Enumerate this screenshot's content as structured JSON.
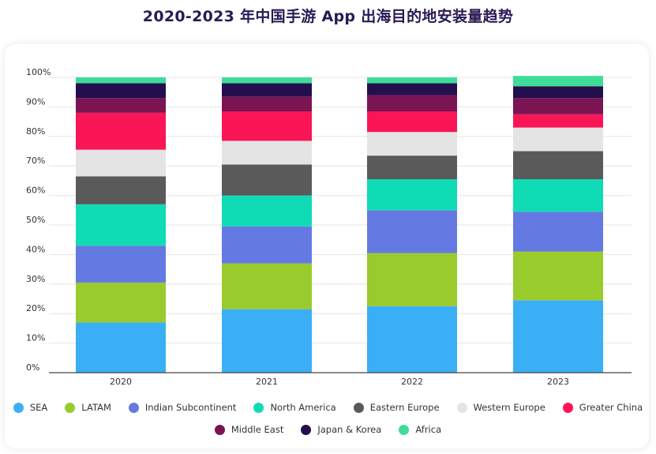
{
  "title": "2020-2023 年中国手游 App 出海目的地安装量趋势",
  "chart_data": {
    "type": "bar",
    "stacked": true,
    "title": "2020-2023 年中国手游 App 出海目的地安装量趋势",
    "xlabel": "",
    "ylabel": "",
    "ylim": [
      0,
      100
    ],
    "yticks": [
      "0%",
      "10%",
      "20%",
      "30%",
      "40%",
      "50%",
      "60%",
      "70%",
      "80%",
      "90%",
      "100%"
    ],
    "categories": [
      "2020",
      "2021",
      "2022",
      "2023"
    ],
    "series": [
      {
        "name": "SEA",
        "color": "#3aaff5",
        "values": [
          17,
          21.5,
          22.5,
          24.5
        ]
      },
      {
        "name": "LATAM",
        "color": "#9acb2d",
        "values": [
          13.5,
          15.5,
          18,
          16.5
        ]
      },
      {
        "name": "Indian Subcontinent",
        "color": "#6479e2",
        "values": [
          12.5,
          12.5,
          14.5,
          13.5
        ]
      },
      {
        "name": "North America",
        "color": "#0fdcb5",
        "values": [
          14,
          10.5,
          10.5,
          11
        ]
      },
      {
        "name": "Eastern Europe",
        "color": "#5a5a5a",
        "values": [
          9.5,
          10.5,
          8,
          9.5
        ]
      },
      {
        "name": "Western Europe",
        "color": "#e4e4e4",
        "values": [
          9,
          8,
          8,
          8
        ]
      },
      {
        "name": "Greater China",
        "color": "#fa1557",
        "values": [
          12.5,
          10,
          7,
          4.5
        ]
      },
      {
        "name": "Middle East",
        "color": "#7a1452",
        "values": [
          5,
          5,
          5.5,
          5.5
        ]
      },
      {
        "name": "Japan & Korea",
        "color": "#230f4e",
        "values": [
          5,
          4.5,
          4,
          4
        ]
      },
      {
        "name": "Africa",
        "color": "#3fdc97",
        "values": [
          2,
          2,
          2,
          3.5
        ]
      }
    ]
  },
  "legend": {
    "row1": [
      {
        "label": "SEA",
        "color": "#3aaff5"
      },
      {
        "label": "LATAM",
        "color": "#9acb2d"
      },
      {
        "label": "Indian Subcontinent",
        "color": "#6479e2"
      },
      {
        "label": "North America",
        "color": "#0fdcb5"
      },
      {
        "label": "Eastern Europe",
        "color": "#5a5a5a"
      },
      {
        "label": "Western Europe",
        "color": "#e4e4e4"
      },
      {
        "label": "Greater China",
        "color": "#fa1557"
      }
    ],
    "row2": [
      {
        "label": "Middle East",
        "color": "#7a1452"
      },
      {
        "label": "Japan & Korea",
        "color": "#230f4e"
      },
      {
        "label": "Africa",
        "color": "#3fdc97"
      }
    ]
  }
}
